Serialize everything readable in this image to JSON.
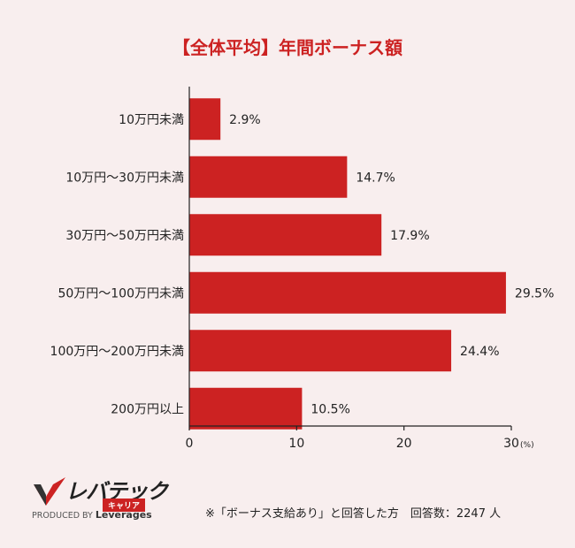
{
  "title": "【全体平均】年間ボーナス額",
  "chart_data": {
    "type": "bar",
    "orientation": "horizontal",
    "categories": [
      "10万円未満",
      "10万円〜30万円未満",
      "30万円〜50万円未満",
      "50万円〜100万円未満",
      "100万円〜200万円未満",
      "200万円以上"
    ],
    "values": [
      2.9,
      14.7,
      17.9,
      29.5,
      24.4,
      10.5
    ],
    "value_labels": [
      "2.9%",
      "14.7%",
      "17.9%",
      "29.5%",
      "24.4%",
      "10.5%"
    ],
    "xlim": [
      0,
      30
    ],
    "x_ticks": [
      "0",
      "10",
      "20",
      "30"
    ],
    "x_unit": "(%)",
    "bar_color": "#cc2222"
  },
  "logo": {
    "name": "レバテック",
    "sub": "キャリア",
    "credit_prefix": "PRODUCED BY",
    "credit_brand": "Leverages"
  },
  "footnote": "※「ボーナス支給あり」と回答した方　回答数：2247 人"
}
